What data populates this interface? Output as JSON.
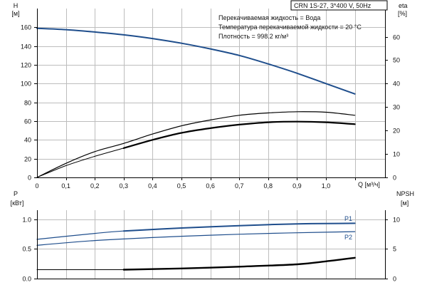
{
  "chart_data": [
    {
      "id": "top",
      "type": "line",
      "title": "CRN 1S-27, 3*400 V, 50Hz",
      "info_lines": [
        "Перекачиваемая жидкость = Вода",
        "Температура перекачиваемой жидкости = 20 °C",
        "Плотность = 998.2 кг/м³"
      ],
      "left_axis": {
        "label_line1": "H",
        "label_line2": "[м]",
        "ylim": [
          0,
          180
        ],
        "ticks": [
          "0",
          "20",
          "40",
          "60",
          "80",
          "100",
          "120",
          "140",
          "160"
        ]
      },
      "right_axis": {
        "label_line1": "eta",
        "label_line2": "[%]",
        "ylim": [
          0,
          72
        ],
        "ticks": [
          "0",
          "10",
          "20",
          "30",
          "40",
          "50",
          "60"
        ]
      },
      "xlabel": "Q [м³/ч]",
      "xlim": [
        0,
        1.2
      ],
      "x_ticks": [
        "0",
        "0,1",
        "0,2",
        "0,3",
        "0,4",
        "0,5",
        "0,6",
        "0,7",
        "0,8",
        "0,9",
        "1,0"
      ],
      "grid": true,
      "series": [
        {
          "key": "H",
          "axis": "left",
          "color": "#1f4e8c",
          "width": 2,
          "x": [
            0.0,
            0.1,
            0.2,
            0.3,
            0.4,
            0.5,
            0.6,
            0.7,
            0.8,
            0.9,
            1.0,
            1.1
          ],
          "y": [
            159,
            157.5,
            155,
            152,
            148,
            143,
            137,
            130,
            121,
            111,
            100,
            89
          ]
        },
        {
          "key": "eta_pump",
          "axis": "right",
          "color": "#000000",
          "width": 1.2,
          "x": [
            0.0,
            0.1,
            0.2,
            0.3,
            0.4,
            0.5,
            0.6,
            0.7,
            0.8,
            0.9,
            1.0,
            1.1
          ],
          "y": [
            0,
            6,
            11,
            14.5,
            18.5,
            22,
            24.5,
            26.5,
            27.5,
            28,
            27.8,
            26.5
          ]
        },
        {
          "key": "eta_total",
          "axis": "right",
          "color": "#000000",
          "width": 2.2,
          "x": [
            0.3,
            0.4,
            0.5,
            0.6,
            0.7,
            0.8,
            0.9,
            1.0,
            1.1
          ],
          "y": [
            12.5,
            16,
            19,
            21,
            22.5,
            23.5,
            23.8,
            23.5,
            22.7
          ]
        },
        {
          "key": "eta_total_low",
          "axis": "right",
          "color": "#000000",
          "width": 1,
          "x": [
            0.0,
            0.1,
            0.2,
            0.3
          ],
          "y": [
            0,
            5,
            9,
            12.5
          ]
        }
      ]
    },
    {
      "id": "bottom",
      "type": "line",
      "left_axis": {
        "label_line1": "P",
        "label_line2": "[кВт]",
        "ylim": [
          0,
          1.15
        ],
        "ticks": [
          "0.0",
          "0.5",
          "1.0"
        ]
      },
      "right_axis": {
        "label_line1": "NPSH",
        "label_line2": "[м]",
        "ylim": [
          0,
          11.5
        ],
        "ticks": [
          "0",
          "5",
          "10"
        ]
      },
      "xlim": [
        0,
        1.2
      ],
      "grid": true,
      "series": [
        {
          "key": "P1",
          "name": "P1",
          "axis": "left",
          "color": "#1f4e8c",
          "width": 1.2,
          "x": [
            0.0,
            0.2,
            0.3,
            0.5,
            0.7,
            0.9,
            1.1
          ],
          "y": [
            0.66,
            0.76,
            0.8,
            0.85,
            0.89,
            0.92,
            0.93
          ]
        },
        {
          "key": "P1_bold",
          "axis": "left",
          "color": "#1f4e8c",
          "width": 2,
          "x": [
            0.3,
            0.5,
            0.7,
            0.9,
            1.1
          ],
          "y": [
            0.8,
            0.85,
            0.89,
            0.92,
            0.93
          ]
        },
        {
          "key": "P2",
          "name": "P2",
          "axis": "left",
          "color": "#1f4e8c",
          "width": 1.2,
          "x": [
            0.0,
            0.2,
            0.4,
            0.6,
            0.8,
            1.0,
            1.1
          ],
          "y": [
            0.56,
            0.64,
            0.69,
            0.73,
            0.76,
            0.78,
            0.79
          ]
        },
        {
          "key": "NPSH_low",
          "axis": "right",
          "color": "#000000",
          "width": 1,
          "x": [
            0.0,
            0.3
          ],
          "y": [
            1.5,
            1.5
          ]
        },
        {
          "key": "NPSH",
          "axis": "right",
          "color": "#000000",
          "width": 2.4,
          "x": [
            0.3,
            0.5,
            0.7,
            0.9,
            1.0,
            1.1
          ],
          "y": [
            1.5,
            1.7,
            2.0,
            2.4,
            2.9,
            3.5
          ]
        }
      ]
    }
  ]
}
